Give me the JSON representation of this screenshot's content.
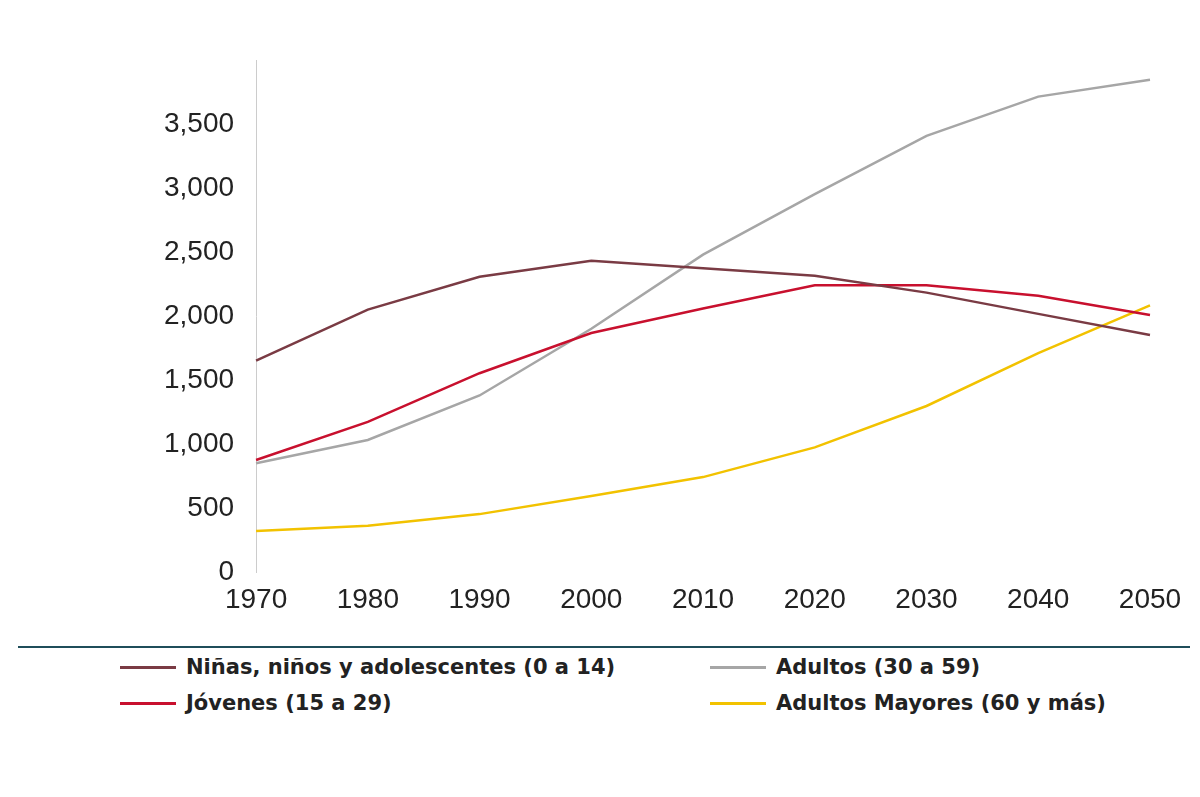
{
  "chart_data": {
    "type": "line",
    "categories": [
      "1970",
      "1980",
      "1990",
      "2000",
      "2010",
      "2020",
      "2030",
      "2040",
      "2050"
    ],
    "series": [
      {
        "name": "Niñas, niños y adolescentes (0 a 14)",
        "color": "#7a3b44",
        "values": [
          1654,
          2051,
          2308,
          2432,
          2374,
          2316,
          2184,
          2018,
          1853
        ]
      },
      {
        "name": "Jóvenes (15 a 29)",
        "color": "#c8102e",
        "values": [
          877,
          1175,
          1555,
          1869,
          2060,
          2241,
          2241,
          2159,
          2010
        ]
      },
      {
        "name": "Adultos (30 a 59)",
        "color": "#a6a6a6",
        "values": [
          852,
          1034,
          1381,
          1902,
          2481,
          2953,
          3408,
          3714,
          3846
        ]
      },
      {
        "name": "Adultos Mayores (60 y más)",
        "color": "#f2c200",
        "values": [
          323,
          364,
          455,
          596,
          744,
          976,
          1299,
          1712,
          2084
        ]
      }
    ],
    "ylim": [
      0,
      4000
    ],
    "yticks": [
      0,
      500,
      {
        "value": 1000,
        "label": "1,000"
      },
      {
        "value": 1500,
        "label": "1,500"
      },
      {
        "value": 2000,
        "label": "2,000"
      },
      {
        "value": 2500,
        "label": "2,500"
      },
      {
        "value": 3000,
        "label": "3,000"
      },
      {
        "value": 3500,
        "label": "3,500"
      }
    ],
    "grid": false,
    "legend": "bottom"
  }
}
